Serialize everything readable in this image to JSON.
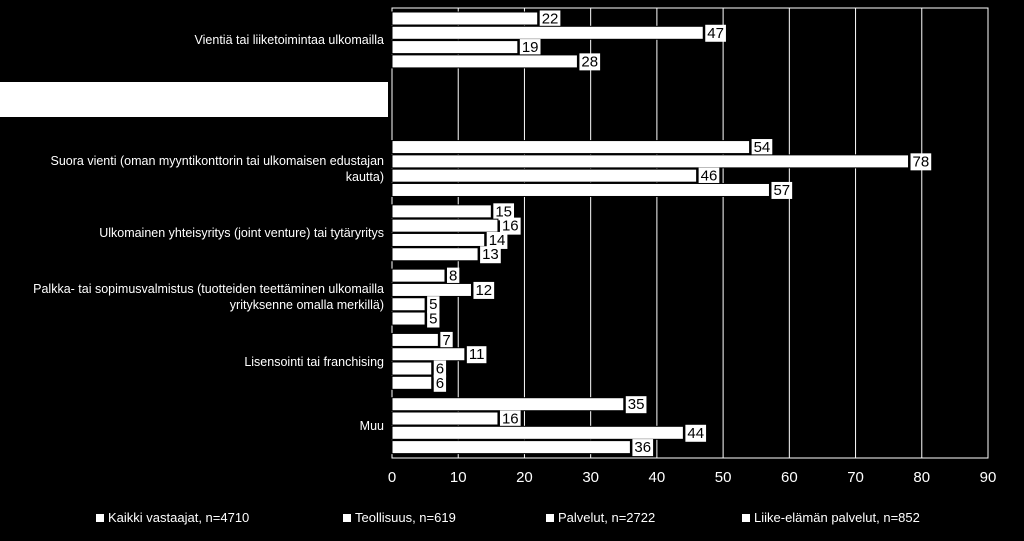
{
  "chart_data": {
    "type": "hbar",
    "categories": [
      "Vientiä tai liiketoimintaa ulkomailla",
      null,
      "Suora vienti (oman myyntikonttorin tai ulkomaisen edustajan kautta)",
      "Ulkomainen yhteisyritys (joint venture) tai tytäryritys",
      "Palkka- tai sopimusvalmistus (tuotteiden teettäminen ulkomailla yrityksenne omalla merkillä)",
      "Lisensointi tai franchising",
      "Muu"
    ],
    "series": [
      {
        "name": "Kaikki vastaajat, n=4710",
        "color": "#ffffff",
        "values": [
          22,
          null,
          54,
          15,
          8,
          7,
          35
        ]
      },
      {
        "name": "Teollisuus, n=619",
        "color": "#ffffff",
        "values": [
          47,
          null,
          78,
          16,
          12,
          11,
          16
        ]
      },
      {
        "name": "Palvelut, n=2722",
        "color": "#ffffff",
        "values": [
          19,
          null,
          46,
          14,
          5,
          6,
          44
        ]
      },
      {
        "name": "Liike-elämän palvelut, n=852",
        "color": "#ffffff",
        "values": [
          28,
          null,
          57,
          13,
          5,
          6,
          36
        ]
      }
    ],
    "xlim": [
      0,
      90
    ],
    "xticks": [
      0,
      10,
      20,
      30,
      40,
      50,
      60,
      70,
      80,
      90
    ],
    "grid": true,
    "legend": "bottom"
  }
}
